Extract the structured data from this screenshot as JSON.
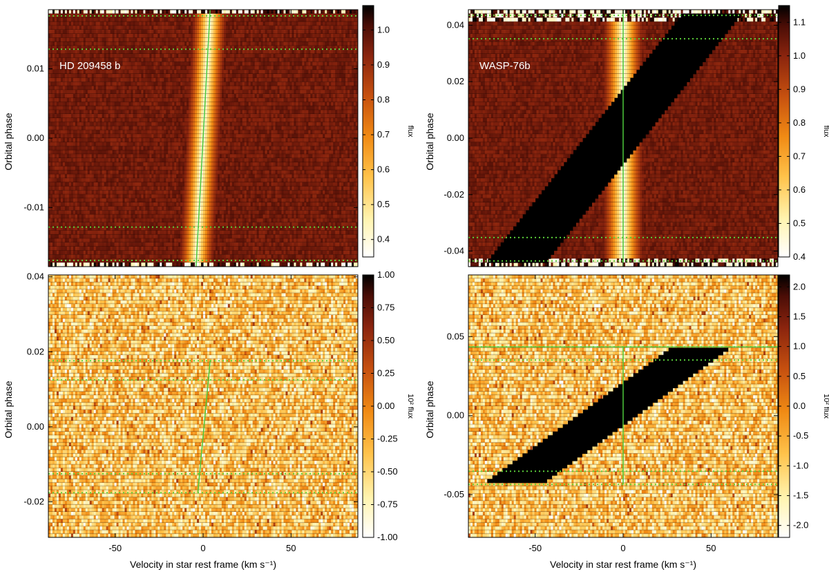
{
  "chart_data": [
    {
      "type": "heatmap",
      "title": "HD 209458 b",
      "ylabel": "Orbital phase",
      "xlabel": "",
      "xlim": [
        -88,
        88
      ],
      "ylim": [
        -0.0185,
        0.0185
      ],
      "xticks": [
        -50,
        0,
        50
      ],
      "xtick_labels": [
        "",
        "",
        ""
      ],
      "yticks": [
        -0.01,
        0.0,
        0.01
      ],
      "ytick_labels": [
        "-0.01",
        "0.00",
        "0.01"
      ],
      "colorbar": {
        "label": "flux",
        "range": [
          0.35,
          1.07
        ],
        "ticks": [
          0.4,
          0.5,
          0.6,
          0.7,
          0.8,
          0.9,
          1.0
        ],
        "tick_labels": [
          "0.4",
          "0.5",
          "0.6",
          "0.7",
          "0.8",
          "0.9",
          "1.0"
        ]
      },
      "dotted_lines_phase": [
        -0.0128,
        0.0128,
        0.0176,
        -0.0176
      ],
      "stellar_line": {
        "velocity_at_top": 4.0,
        "velocity_at_bottom": -4.0,
        "width_kms": 6
      },
      "shadow": null
    },
    {
      "type": "heatmap",
      "title": "WASP-76b",
      "ylabel": "Orbital phase",
      "xlabel": "",
      "xlim": [
        -88,
        88
      ],
      "ylim": [
        -0.0455,
        0.0455
      ],
      "xticks": [
        -50,
        0,
        50
      ],
      "xtick_labels": [
        "",
        "",
        ""
      ],
      "yticks": [
        -0.04,
        -0.02,
        0.0,
        0.02,
        0.04
      ],
      "ytick_labels": [
        "-0.04",
        "-0.02",
        "0.00",
        "0.02",
        "0.04"
      ],
      "colorbar": {
        "label": "flux",
        "range": [
          0.4,
          1.15
        ],
        "ticks": [
          0.4,
          0.5,
          0.6,
          0.7,
          0.8,
          0.9,
          1.0,
          1.1
        ],
        "tick_labels": [
          "0.4",
          "0.5",
          "0.6",
          "0.7",
          "0.8",
          "0.9",
          "1.0",
          "1.1"
        ]
      },
      "dotted_lines_phase": [
        0.0435,
        0.0352,
        -0.0352,
        -0.0435
      ],
      "stellar_line": {
        "velocity_at_top": 0.0,
        "velocity_at_bottom": 0.0,
        "width_kms": 7
      },
      "shadow": {
        "phase_top": 0.0435,
        "phase_bottom": -0.0435,
        "center_v_top": 50,
        "center_v_bottom": -60,
        "half_width_kms": 17
      }
    },
    {
      "type": "heatmap",
      "title": "",
      "ylabel": "Orbital phase",
      "xlabel": "Velocity in star rest frame (km s⁻¹)",
      "xlim": [
        -88,
        88
      ],
      "ylim": [
        -0.0295,
        0.0405
      ],
      "xticks": [
        -50,
        0,
        50
      ],
      "xtick_labels": [
        "-50",
        "0",
        "50"
      ],
      "yticks": [
        -0.02,
        0.0,
        0.02,
        0.04
      ],
      "ytick_labels": [
        "-0.02",
        "0.00",
        "0.02",
        "0.04"
      ],
      "colorbar": {
        "label": "10² flux",
        "range": [
          -1.0,
          1.0
        ],
        "ticks": [
          -1.0,
          -0.75,
          -0.5,
          -0.25,
          0.0,
          0.25,
          0.5,
          0.75,
          1.0
        ],
        "tick_labels": [
          "-1.00",
          "-0.75",
          "-0.50",
          "-0.25",
          "0.00",
          "0.25",
          "0.50",
          "0.75",
          "1.00"
        ]
      },
      "dotted_lines_phase": [
        0.0125,
        -0.0125,
        0.0176,
        -0.0176
      ],
      "planet_track": {
        "phase_top": 0.0176,
        "phase_bottom": -0.0176,
        "v_top": 4,
        "v_bottom": -3
      },
      "shadow": null
    },
    {
      "type": "heatmap",
      "title": "",
      "ylabel": "Orbital phase",
      "xlabel": "Velocity in star rest frame (km s⁻¹)",
      "xlim": [
        -88,
        88
      ],
      "ylim": [
        -0.077,
        0.089
      ],
      "xticks": [
        -50,
        0,
        50
      ],
      "xtick_labels": [
        "-50",
        "0",
        "50"
      ],
      "yticks": [
        -0.05,
        0.0,
        0.05
      ],
      "ytick_labels": [
        "-0.05",
        "0.00",
        "0.05"
      ],
      "colorbar": {
        "label": "10² flux",
        "range": [
          -2.2,
          2.2
        ],
        "ticks": [
          -2.0,
          -1.5,
          -1.0,
          -0.5,
          0.0,
          0.5,
          1.0,
          1.5,
          2.0
        ],
        "tick_labels": [
          "-2.0",
          "-1.5",
          "-1.0",
          "-0.5",
          "0.0",
          "0.5",
          "1.0",
          "1.5",
          "2.0"
        ]
      },
      "dotted_lines_phase": [
        0.0435,
        0.0352,
        -0.0352,
        -0.0435
      ],
      "planet_track": {
        "phase_top": 0.0435,
        "phase_bottom": -0.0435,
        "v_top": 0,
        "v_bottom": 0
      },
      "shadow": {
        "phase_top": 0.0435,
        "phase_bottom": -0.0435,
        "center_v_top": 45,
        "center_v_bottom": -63,
        "half_width_kms": 17
      }
    }
  ]
}
